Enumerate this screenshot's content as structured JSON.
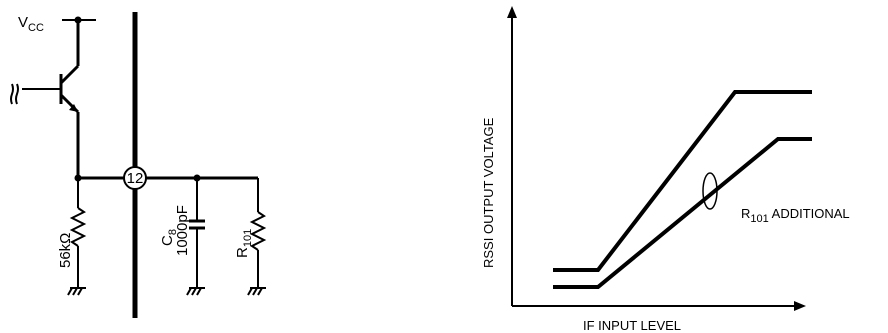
{
  "circuit": {
    "vcc": {
      "main": "V",
      "sub": "CC"
    },
    "pin": "12",
    "resistor_56k": "56kΩ",
    "capacitor": {
      "main": "C",
      "sub": "8",
      "value": "1000pF"
    },
    "resistor_r101": {
      "main": "R",
      "sub": "101"
    }
  },
  "graph": {
    "ylabel": "RSSI OUTPUT VOLTAGE",
    "xlabel": "IF INPUT LEVEL",
    "annotation": {
      "main": "R",
      "sub": "101",
      "suffix": " ADDITIONAL"
    },
    "curves": [
      {
        "id": "standard"
      },
      {
        "id": "r101-additional"
      }
    ]
  }
}
